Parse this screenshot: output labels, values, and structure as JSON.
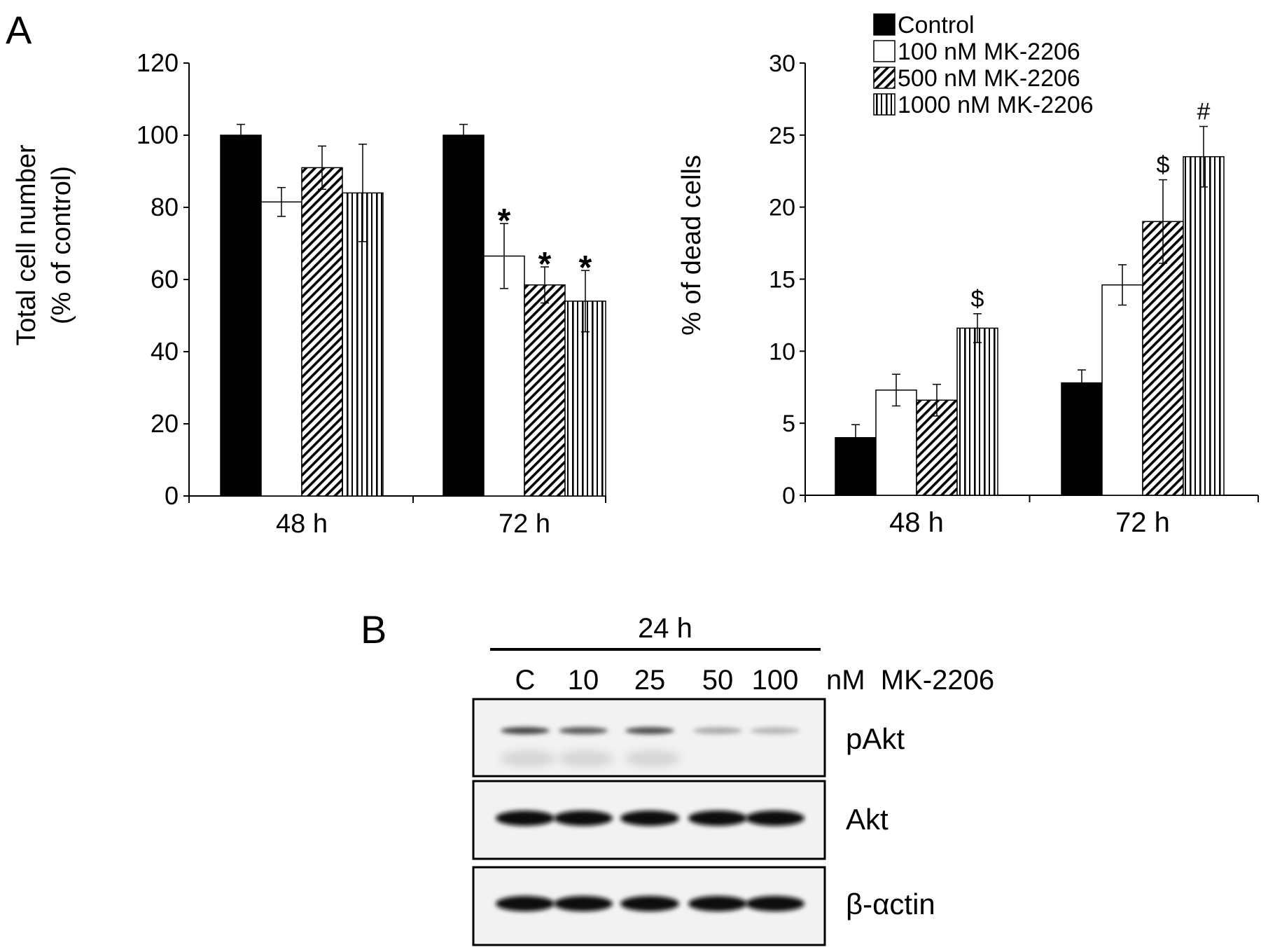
{
  "panel_labels": {
    "a": "A",
    "b": "B"
  },
  "legend": [
    {
      "label": "Control",
      "pattern": "solid"
    },
    {
      "label": "100 nM MK-2206",
      "pattern": "white"
    },
    {
      "label": "500 nM MK-2206",
      "pattern": "diagonal"
    },
    {
      "label": "1000 nM MK-2206",
      "pattern": "vertical"
    }
  ],
  "chart_data": [
    {
      "type": "bar",
      "title": "",
      "ylabel_line1": "Total cell number",
      "ylabel_line2": "(% of control)",
      "xlabel": "",
      "categories": [
        "48 h",
        "72 h"
      ],
      "ylim": [
        0,
        120
      ],
      "yticks": [
        0,
        20,
        40,
        60,
        80,
        100,
        120
      ],
      "grid": false,
      "series": [
        {
          "name": "Control",
          "values": [
            100,
            100
          ],
          "errors": [
            3,
            3
          ],
          "annotations": [
            "",
            ""
          ]
        },
        {
          "name": "100 nM MK-2206",
          "values": [
            81.5,
            66.5
          ],
          "errors": [
            4,
            9
          ],
          "annotations": [
            "",
            "*"
          ]
        },
        {
          "name": "500 nM MK-2206",
          "values": [
            91,
            58.5
          ],
          "errors": [
            6,
            5
          ],
          "annotations": [
            "",
            "*"
          ]
        },
        {
          "name": "1000 nM MK-2206",
          "values": [
            84,
            54
          ],
          "errors": [
            13.5,
            8.5
          ],
          "annotations": [
            "",
            "*"
          ]
        }
      ]
    },
    {
      "type": "bar",
      "title": "",
      "ylabel": "% of dead cells",
      "xlabel": "",
      "categories": [
        "48 h",
        "72 h"
      ],
      "ylim": [
        0,
        30
      ],
      "yticks": [
        0,
        5,
        10,
        15,
        20,
        25,
        30
      ],
      "grid": false,
      "legend_position": "top-right",
      "series": [
        {
          "name": "Control",
          "values": [
            4,
            7.8
          ],
          "errors": [
            0.9,
            0.9
          ],
          "annotations": [
            "",
            ""
          ]
        },
        {
          "name": "100 nM MK-2206",
          "values": [
            7.3,
            14.6
          ],
          "errors": [
            1.1,
            1.4
          ],
          "annotations": [
            "",
            ""
          ]
        },
        {
          "name": "500 nM MK-2206",
          "values": [
            6.6,
            19
          ],
          "errors": [
            1.1,
            2.9
          ],
          "annotations": [
            "",
            "$"
          ]
        },
        {
          "name": "1000 nM MK-2206",
          "values": [
            11.6,
            23.5
          ],
          "errors": [
            1,
            2.1
          ],
          "annotations": [
            "$",
            "#"
          ]
        }
      ]
    }
  ],
  "western_blot": {
    "time_label": "24 h",
    "lanes": [
      "C",
      "10",
      "25",
      "50",
      "100"
    ],
    "unit_label": "nM  MK-2206",
    "rows": [
      {
        "label": "pAkt",
        "intensities": [
          0.8,
          0.7,
          0.75,
          0.35,
          0.3
        ]
      },
      {
        "label": "Akt",
        "intensities": [
          1,
          1,
          1,
          1,
          1
        ]
      },
      {
        "label": "β-αctin",
        "intensities": [
          1,
          1,
          1,
          1,
          1
        ]
      }
    ]
  }
}
